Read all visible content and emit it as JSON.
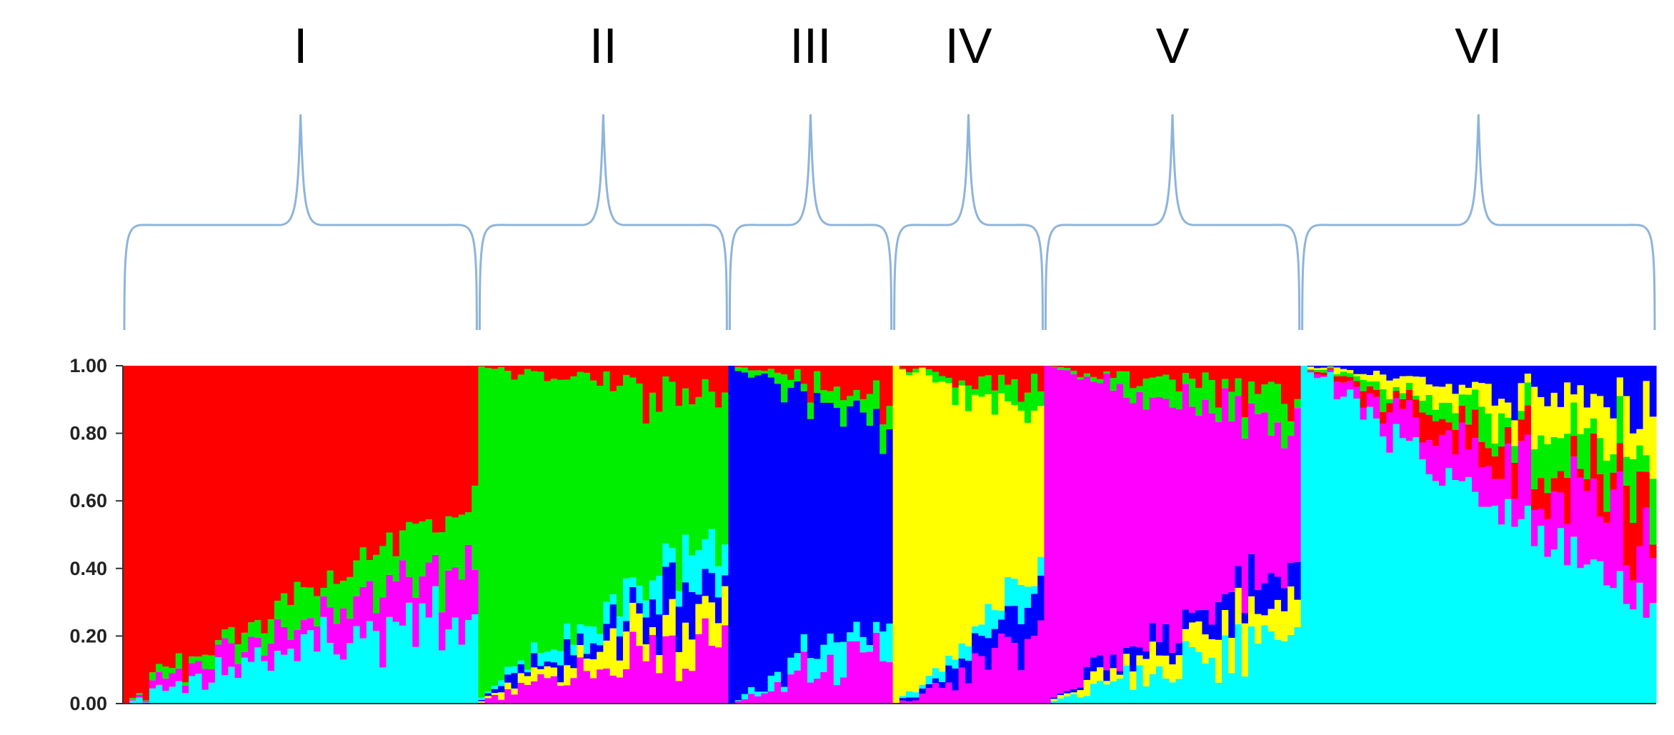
{
  "chart_data": {
    "type": "stacked-bar",
    "plot": "population structure (admixture) proportions",
    "ylim": [
      0,
      1.0
    ],
    "yticks": [
      "1.00",
      "0.80",
      "0.60",
      "0.40",
      "0.20",
      "0.00"
    ],
    "grid": false,
    "legend": "none",
    "colors": {
      "red": "#ff0000",
      "green": "#00ee00",
      "blue": "#0000ff",
      "yellow": "#ffff00",
      "magenta": "#ff00ff",
      "cyan": "#00ffff"
    },
    "components": [
      "cyan",
      "magenta",
      "yellow",
      "blue",
      "green",
      "red"
    ],
    "groups": [
      {
        "label": "I",
        "n": 54,
        "dominant": "red",
        "dom_start": 1.0,
        "dom_end": 0.41,
        "accent": [
          "cyan",
          "magenta",
          "green"
        ]
      },
      {
        "label": "II",
        "n": 38,
        "dominant": "green",
        "dom_start": 0.98,
        "dom_end": 0.4,
        "accent": [
          "magenta",
          "yellow",
          "blue",
          "red",
          "cyan"
        ]
      },
      {
        "label": "III",
        "n": 25,
        "dominant": "blue",
        "dom_start": 1.0,
        "dom_end": 0.55,
        "accent": [
          "magenta",
          "green",
          "red",
          "cyan"
        ]
      },
      {
        "label": "IV",
        "n": 23,
        "dominant": "yellow",
        "dom_start": 1.0,
        "dom_end": 0.45,
        "accent": [
          "magenta",
          "green",
          "blue",
          "red",
          "cyan"
        ]
      },
      {
        "label": "V",
        "n": 39,
        "dominant": "magenta",
        "dom_start": 1.0,
        "dom_end": 0.4,
        "accent": [
          "cyan",
          "yellow",
          "green",
          "red",
          "blue"
        ]
      },
      {
        "label": "VI",
        "n": 54,
        "dominant": "cyan",
        "dom_start": 1.0,
        "dom_end": 0.3,
        "accent": [
          "magenta",
          "red",
          "green",
          "yellow",
          "blue"
        ]
      }
    ]
  }
}
